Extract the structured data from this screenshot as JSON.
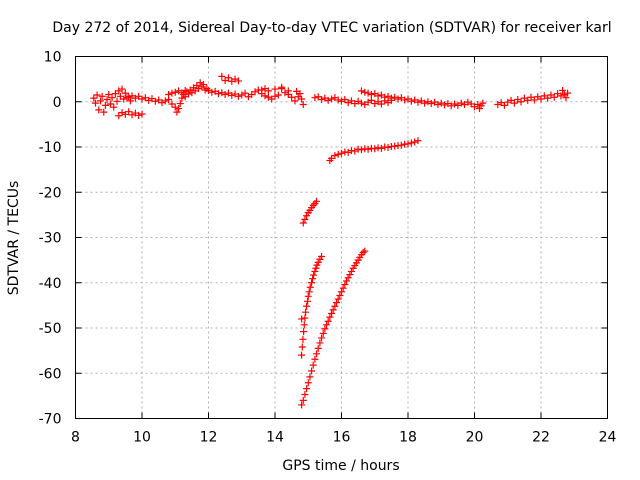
{
  "chart_data": {
    "type": "scatter",
    "title": "Day 272 of 2014, Sidereal Day-to-day VTEC variation (SDTVAR) for receiver karl",
    "xlabel": "GPS time / hours",
    "ylabel": "SDTVAR / TECUs",
    "xlim": [
      8,
      24
    ],
    "ylim": [
      -70,
      10
    ],
    "xticks": [
      8,
      10,
      12,
      14,
      16,
      18,
      20,
      22,
      24
    ],
    "yticks": [
      10,
      0,
      -10,
      -20,
      -30,
      -40,
      -50,
      -60,
      -70
    ],
    "grid": true,
    "marker": "plus",
    "color": "#ff0000",
    "series": [
      {
        "points": [
          [
            8.55,
            0.8
          ],
          [
            8.6,
            -0.3
          ],
          [
            8.65,
            1.5
          ],
          [
            8.7,
            -1.8
          ],
          [
            8.75,
            0.2
          ],
          [
            8.8,
            1.2
          ],
          [
            8.85,
            -2.3
          ],
          [
            8.9,
            -0.8
          ],
          [
            8.95,
            0.5
          ],
          [
            9.0,
            1.6
          ],
          [
            9.05,
            -0.5
          ],
          [
            9.1,
            0.9
          ],
          [
            9.15,
            -1.2
          ],
          [
            9.2,
            1.8
          ],
          [
            9.25,
            0.1
          ],
          [
            9.3,
            2.4
          ],
          [
            9.35,
            1.2
          ],
          [
            9.4,
            2.8
          ],
          [
            9.45,
            0.6
          ],
          [
            9.5,
            1.9
          ],
          [
            9.55,
            0.9
          ],
          [
            9.6,
            1.1
          ],
          [
            9.65,
            0.2
          ],
          [
            9.7,
            1.3
          ],
          [
            9.3,
            -3.1
          ],
          [
            9.4,
            -2.4
          ],
          [
            9.5,
            -2.8
          ],
          [
            9.6,
            -2.2
          ],
          [
            9.7,
            -2.9
          ],
          [
            9.8,
            -2.5
          ],
          [
            9.9,
            -3.0
          ],
          [
            10.0,
            -2.7
          ],
          [
            9.8,
            0.8
          ],
          [
            9.9,
            1.2
          ],
          [
            10.0,
            0.6
          ],
          [
            10.1,
            0.9
          ],
          [
            10.2,
            0.3
          ],
          [
            10.3,
            0.7
          ],
          [
            10.4,
            0.1
          ],
          [
            10.5,
            0.4
          ],
          [
            10.6,
            -0.2
          ],
          [
            10.7,
            0.2
          ],
          [
            10.8,
            0.5
          ],
          [
            10.9,
            -0.5
          ],
          [
            11.0,
            -1.2
          ],
          [
            11.05,
            -2.3
          ],
          [
            11.1,
            -1.5
          ],
          [
            11.15,
            -0.4
          ],
          [
            11.2,
            0.8
          ],
          [
            11.25,
            1.6
          ],
          [
            11.3,
            1.1
          ],
          [
            11.35,
            2.2
          ],
          [
            11.4,
            1.7
          ],
          [
            11.45,
            2.6
          ],
          [
            11.5,
            2.0
          ],
          [
            11.55,
            3.1
          ],
          [
            11.6,
            2.4
          ],
          [
            11.65,
            3.6
          ],
          [
            11.7,
            2.9
          ],
          [
            11.75,
            4.2
          ],
          [
            11.8,
            3.3
          ],
          [
            11.85,
            3.8
          ],
          [
            11.9,
            2.6
          ],
          [
            11.95,
            2.9
          ],
          [
            10.8,
            1.6
          ],
          [
            10.9,
            1.9
          ],
          [
            11.0,
            2.1
          ],
          [
            11.1,
            2.4
          ],
          [
            11.2,
            2.0
          ],
          [
            11.3,
            2.5
          ],
          [
            12.0,
            2.5
          ],
          [
            12.1,
            2.1
          ],
          [
            12.2,
            2.3
          ],
          [
            12.3,
            1.8
          ],
          [
            12.4,
            2.0
          ],
          [
            12.5,
            1.6
          ],
          [
            12.6,
            1.9
          ],
          [
            12.7,
            1.4
          ],
          [
            12.8,
            1.7
          ],
          [
            12.9,
            1.2
          ],
          [
            13.0,
            1.5
          ],
          [
            13.1,
            1.9
          ],
          [
            13.2,
            1.1
          ],
          [
            13.3,
            1.6
          ],
          [
            13.4,
            2.2
          ],
          [
            13.5,
            2.6
          ],
          [
            13.6,
            1.8
          ],
          [
            13.7,
            1.3
          ],
          [
            13.8,
            1.0
          ],
          [
            13.9,
            0.6
          ],
          [
            14.0,
            1.2
          ],
          [
            14.1,
            1.5
          ],
          [
            14.2,
            2.9
          ],
          [
            14.3,
            2.0
          ],
          [
            14.4,
            1.6
          ],
          [
            14.5,
            1.0
          ],
          [
            14.6,
            0.2
          ],
          [
            14.65,
            2.3
          ],
          [
            14.7,
            1.1
          ],
          [
            14.75,
            1.8
          ],
          [
            14.8,
            0.6
          ],
          [
            14.85,
            -0.6
          ],
          [
            12.4,
            5.6
          ],
          [
            12.5,
            4.7
          ],
          [
            12.6,
            5.3
          ],
          [
            12.7,
            4.5
          ],
          [
            12.8,
            5.0
          ],
          [
            12.9,
            4.6
          ],
          [
            13.6,
            2.6
          ],
          [
            13.7,
            2.9
          ],
          [
            13.8,
            2.4
          ],
          [
            14.0,
            2.8
          ],
          [
            14.2,
            3.2
          ],
          [
            14.4,
            2.4
          ],
          [
            15.2,
            0.9
          ],
          [
            15.3,
            1.1
          ],
          [
            15.4,
            0.5
          ],
          [
            15.5,
            0.8
          ],
          [
            15.6,
            0.3
          ],
          [
            15.7,
            0.6
          ],
          [
            15.8,
            0.9
          ],
          [
            15.9,
            0.4
          ],
          [
            16.0,
            0.1
          ],
          [
            16.1,
            0.5
          ],
          [
            16.2,
            -0.2
          ],
          [
            16.3,
            0.2
          ],
          [
            16.4,
            -0.4
          ],
          [
            16.5,
            0.1
          ],
          [
            16.6,
            -0.3
          ],
          [
            16.7,
            -0.6
          ],
          [
            16.8,
            -0.1
          ],
          [
            16.9,
            0.3
          ],
          [
            17.0,
            -0.4
          ],
          [
            17.1,
            0.0
          ],
          [
            17.2,
            -0.5
          ],
          [
            17.3,
            0.2
          ],
          [
            17.4,
            -0.2
          ],
          [
            17.5,
            0.3
          ],
          [
            16.6,
            2.4
          ],
          [
            16.7,
            2.1
          ],
          [
            16.8,
            1.9
          ],
          [
            16.9,
            1.6
          ],
          [
            17.0,
            1.8
          ],
          [
            17.1,
            1.3
          ],
          [
            17.2,
            1.5
          ],
          [
            17.3,
            1.0
          ],
          [
            17.4,
            1.2
          ],
          [
            17.5,
            0.8
          ],
          [
            17.6,
            1.0
          ],
          [
            17.7,
            0.6
          ],
          [
            17.8,
            0.9
          ],
          [
            17.9,
            0.4
          ],
          [
            18.0,
            0.6
          ],
          [
            18.1,
            0.1
          ],
          [
            18.2,
            0.4
          ],
          [
            18.3,
            -0.1
          ],
          [
            18.4,
            0.2
          ],
          [
            18.5,
            -0.3
          ],
          [
            18.6,
            0.0
          ],
          [
            18.7,
            -0.4
          ],
          [
            18.8,
            -0.1
          ],
          [
            18.9,
            -0.6
          ],
          [
            19.0,
            -0.3
          ],
          [
            19.1,
            -0.7
          ],
          [
            19.2,
            -0.4
          ],
          [
            19.3,
            -0.9
          ],
          [
            19.4,
            -0.5
          ],
          [
            19.5,
            -0.8
          ],
          [
            19.6,
            -0.3
          ],
          [
            19.7,
            -0.6
          ],
          [
            19.8,
            -0.1
          ],
          [
            19.9,
            -0.5
          ],
          [
            20.0,
            -1.1
          ],
          [
            20.1,
            -0.6
          ],
          [
            20.15,
            -1.5
          ],
          [
            20.2,
            -0.9
          ],
          [
            20.25,
            -0.3
          ],
          [
            20.7,
            -0.6
          ],
          [
            20.8,
            -0.2
          ],
          [
            20.9,
            -0.8
          ],
          [
            21.0,
            -0.1
          ],
          [
            21.1,
            0.3
          ],
          [
            21.2,
            -0.3
          ],
          [
            21.3,
            0.5
          ],
          [
            21.4,
            0.0
          ],
          [
            21.5,
            0.8
          ],
          [
            21.6,
            0.3
          ],
          [
            21.7,
            1.0
          ],
          [
            21.8,
            0.4
          ],
          [
            21.9,
            1.1
          ],
          [
            22.0,
            0.6
          ],
          [
            22.1,
            1.3
          ],
          [
            22.2,
            0.8
          ],
          [
            22.3,
            1.5
          ],
          [
            22.4,
            1.0
          ],
          [
            22.5,
            1.8
          ],
          [
            22.6,
            1.3
          ],
          [
            22.65,
            2.5
          ],
          [
            22.7,
            1.6
          ],
          [
            22.75,
            0.9
          ],
          [
            22.8,
            1.9
          ],
          [
            15.7,
            -12.5
          ],
          [
            15.8,
            -11.9
          ],
          [
            15.9,
            -11.6
          ],
          [
            16.0,
            -11.4
          ],
          [
            16.1,
            -11.1
          ],
          [
            16.2,
            -11.2
          ],
          [
            16.3,
            -10.8
          ],
          [
            16.4,
            -10.9
          ],
          [
            16.5,
            -10.5
          ],
          [
            16.6,
            -10.6
          ],
          [
            16.7,
            -10.4
          ],
          [
            16.8,
            -10.5
          ],
          [
            16.9,
            -10.3
          ],
          [
            17.0,
            -10.4
          ],
          [
            17.1,
            -10.2
          ],
          [
            17.2,
            -10.3
          ],
          [
            17.3,
            -10.0
          ],
          [
            17.4,
            -10.1
          ],
          [
            17.5,
            -9.9
          ],
          [
            17.6,
            -9.8
          ],
          [
            17.7,
            -9.7
          ],
          [
            17.8,
            -9.6
          ],
          [
            17.9,
            -9.4
          ],
          [
            18.0,
            -9.3
          ],
          [
            18.1,
            -9.1
          ],
          [
            18.2,
            -8.9
          ],
          [
            18.3,
            -8.6
          ],
          [
            15.65,
            -13.0
          ],
          [
            14.85,
            -26.8
          ],
          [
            14.9,
            -26.0
          ],
          [
            14.95,
            -25.2
          ],
          [
            15.0,
            -24.5
          ],
          [
            15.05,
            -24.0
          ],
          [
            15.1,
            -23.4
          ],
          [
            15.15,
            -22.9
          ],
          [
            15.2,
            -22.5
          ],
          [
            15.25,
            -22.0
          ],
          [
            14.8,
            -56.0
          ],
          [
            14.82,
            -54.2
          ],
          [
            14.84,
            -52.5
          ],
          [
            14.86,
            -50.8
          ],
          [
            14.88,
            -49.3
          ],
          [
            14.8,
            -48.0
          ],
          [
            14.9,
            -47.8
          ],
          [
            14.92,
            -46.5
          ],
          [
            14.95,
            -45.2
          ],
          [
            14.98,
            -44.1
          ],
          [
            15.0,
            -43.0
          ],
          [
            15.03,
            -42.0
          ],
          [
            15.06,
            -41.0
          ],
          [
            15.1,
            -40.0
          ],
          [
            15.13,
            -39.1
          ],
          [
            15.16,
            -38.3
          ],
          [
            15.2,
            -37.5
          ],
          [
            15.23,
            -36.8
          ],
          [
            15.26,
            -36.1
          ],
          [
            15.3,
            -35.5
          ],
          [
            15.35,
            -34.8
          ],
          [
            15.4,
            -34.2
          ],
          [
            14.8,
            -67.0
          ],
          [
            14.85,
            -66.0
          ],
          [
            14.9,
            -64.7
          ],
          [
            14.95,
            -63.4
          ],
          [
            15.0,
            -62.1
          ],
          [
            15.05,
            -60.8
          ],
          [
            15.1,
            -59.5
          ],
          [
            15.15,
            -58.2
          ],
          [
            15.2,
            -56.9
          ],
          [
            15.25,
            -55.7
          ],
          [
            15.3,
            -54.5
          ],
          [
            15.35,
            -53.3
          ],
          [
            15.4,
            -52.2
          ],
          [
            15.45,
            -51.2
          ],
          [
            15.5,
            -50.2
          ],
          [
            15.55,
            -49.3
          ],
          [
            15.6,
            -48.5
          ],
          [
            15.65,
            -47.6
          ],
          [
            15.7,
            -46.8
          ],
          [
            15.75,
            -46.0
          ],
          [
            15.8,
            -45.2
          ],
          [
            15.85,
            -44.4
          ],
          [
            15.9,
            -43.6
          ],
          [
            15.95,
            -42.8
          ],
          [
            16.0,
            -42.0
          ],
          [
            16.05,
            -41.2
          ],
          [
            16.1,
            -40.4
          ],
          [
            16.15,
            -39.6
          ],
          [
            16.2,
            -38.9
          ],
          [
            16.25,
            -38.2
          ],
          [
            16.3,
            -37.5
          ],
          [
            16.35,
            -36.8
          ],
          [
            16.4,
            -36.2
          ],
          [
            16.45,
            -35.6
          ],
          [
            16.5,
            -35.0
          ],
          [
            16.55,
            -34.4
          ],
          [
            16.6,
            -33.8
          ],
          [
            16.65,
            -33.3
          ],
          [
            16.7,
            -33.0
          ]
        ]
      }
    ]
  }
}
